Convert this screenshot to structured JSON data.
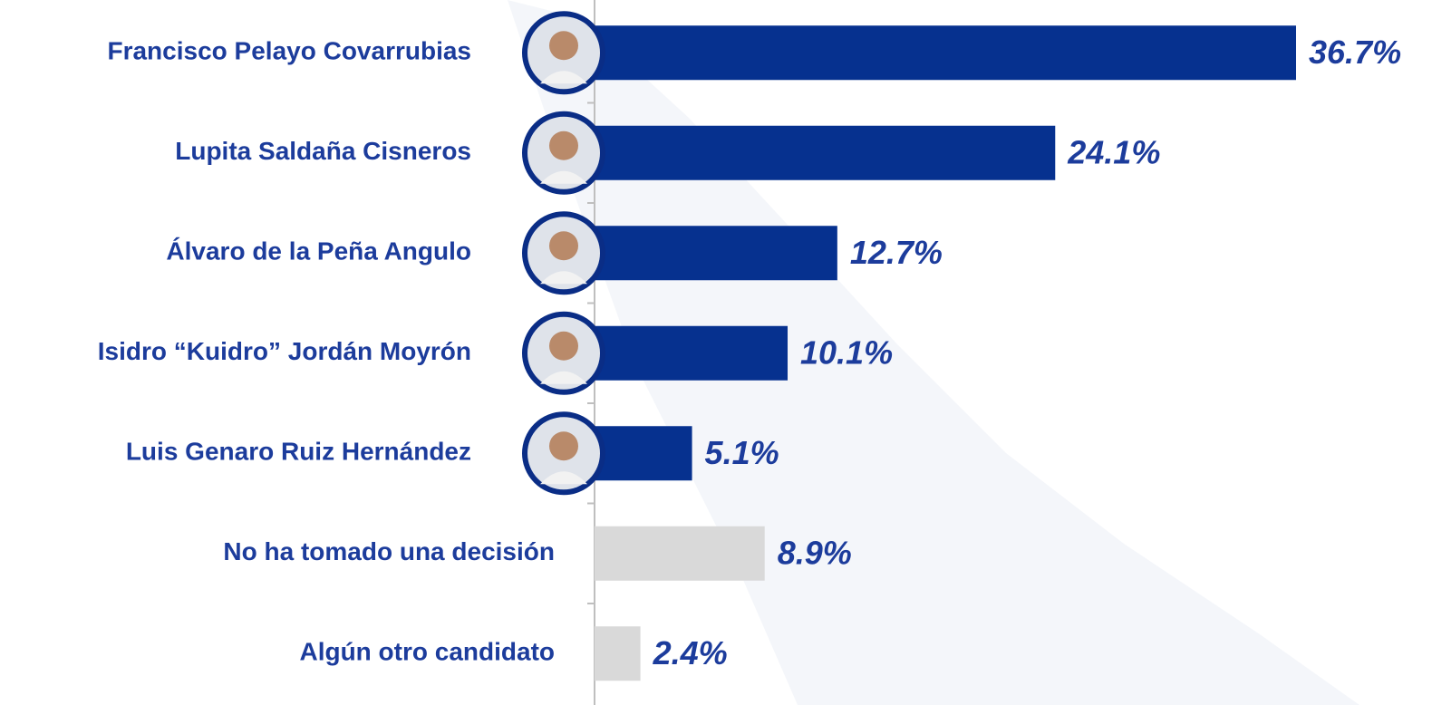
{
  "chart_data": {
    "type": "barh",
    "categories": [
      "Francisco Pelayo Covarrubias",
      "Lupita Saldaña Cisneros",
      "Álvaro de la Peña Angulo",
      "Isidro “Kuidro” Jordán Moyrón",
      "Luis Genaro Ruiz Hernández",
      "No ha tomado una decisión",
      "Algún otro candidato"
    ],
    "values": [
      36.7,
      24.1,
      12.7,
      10.1,
      5.1,
      8.9,
      2.4
    ],
    "value_labels": [
      "36.7%",
      "24.1%",
      "12.7%",
      "10.1%",
      "5.1%",
      "8.9%",
      "2.4%"
    ],
    "colors": [
      "#06318f",
      "#06318f",
      "#06318f",
      "#06318f",
      "#06318f",
      "#d9d9d9",
      "#d9d9d9"
    ]
  }
}
